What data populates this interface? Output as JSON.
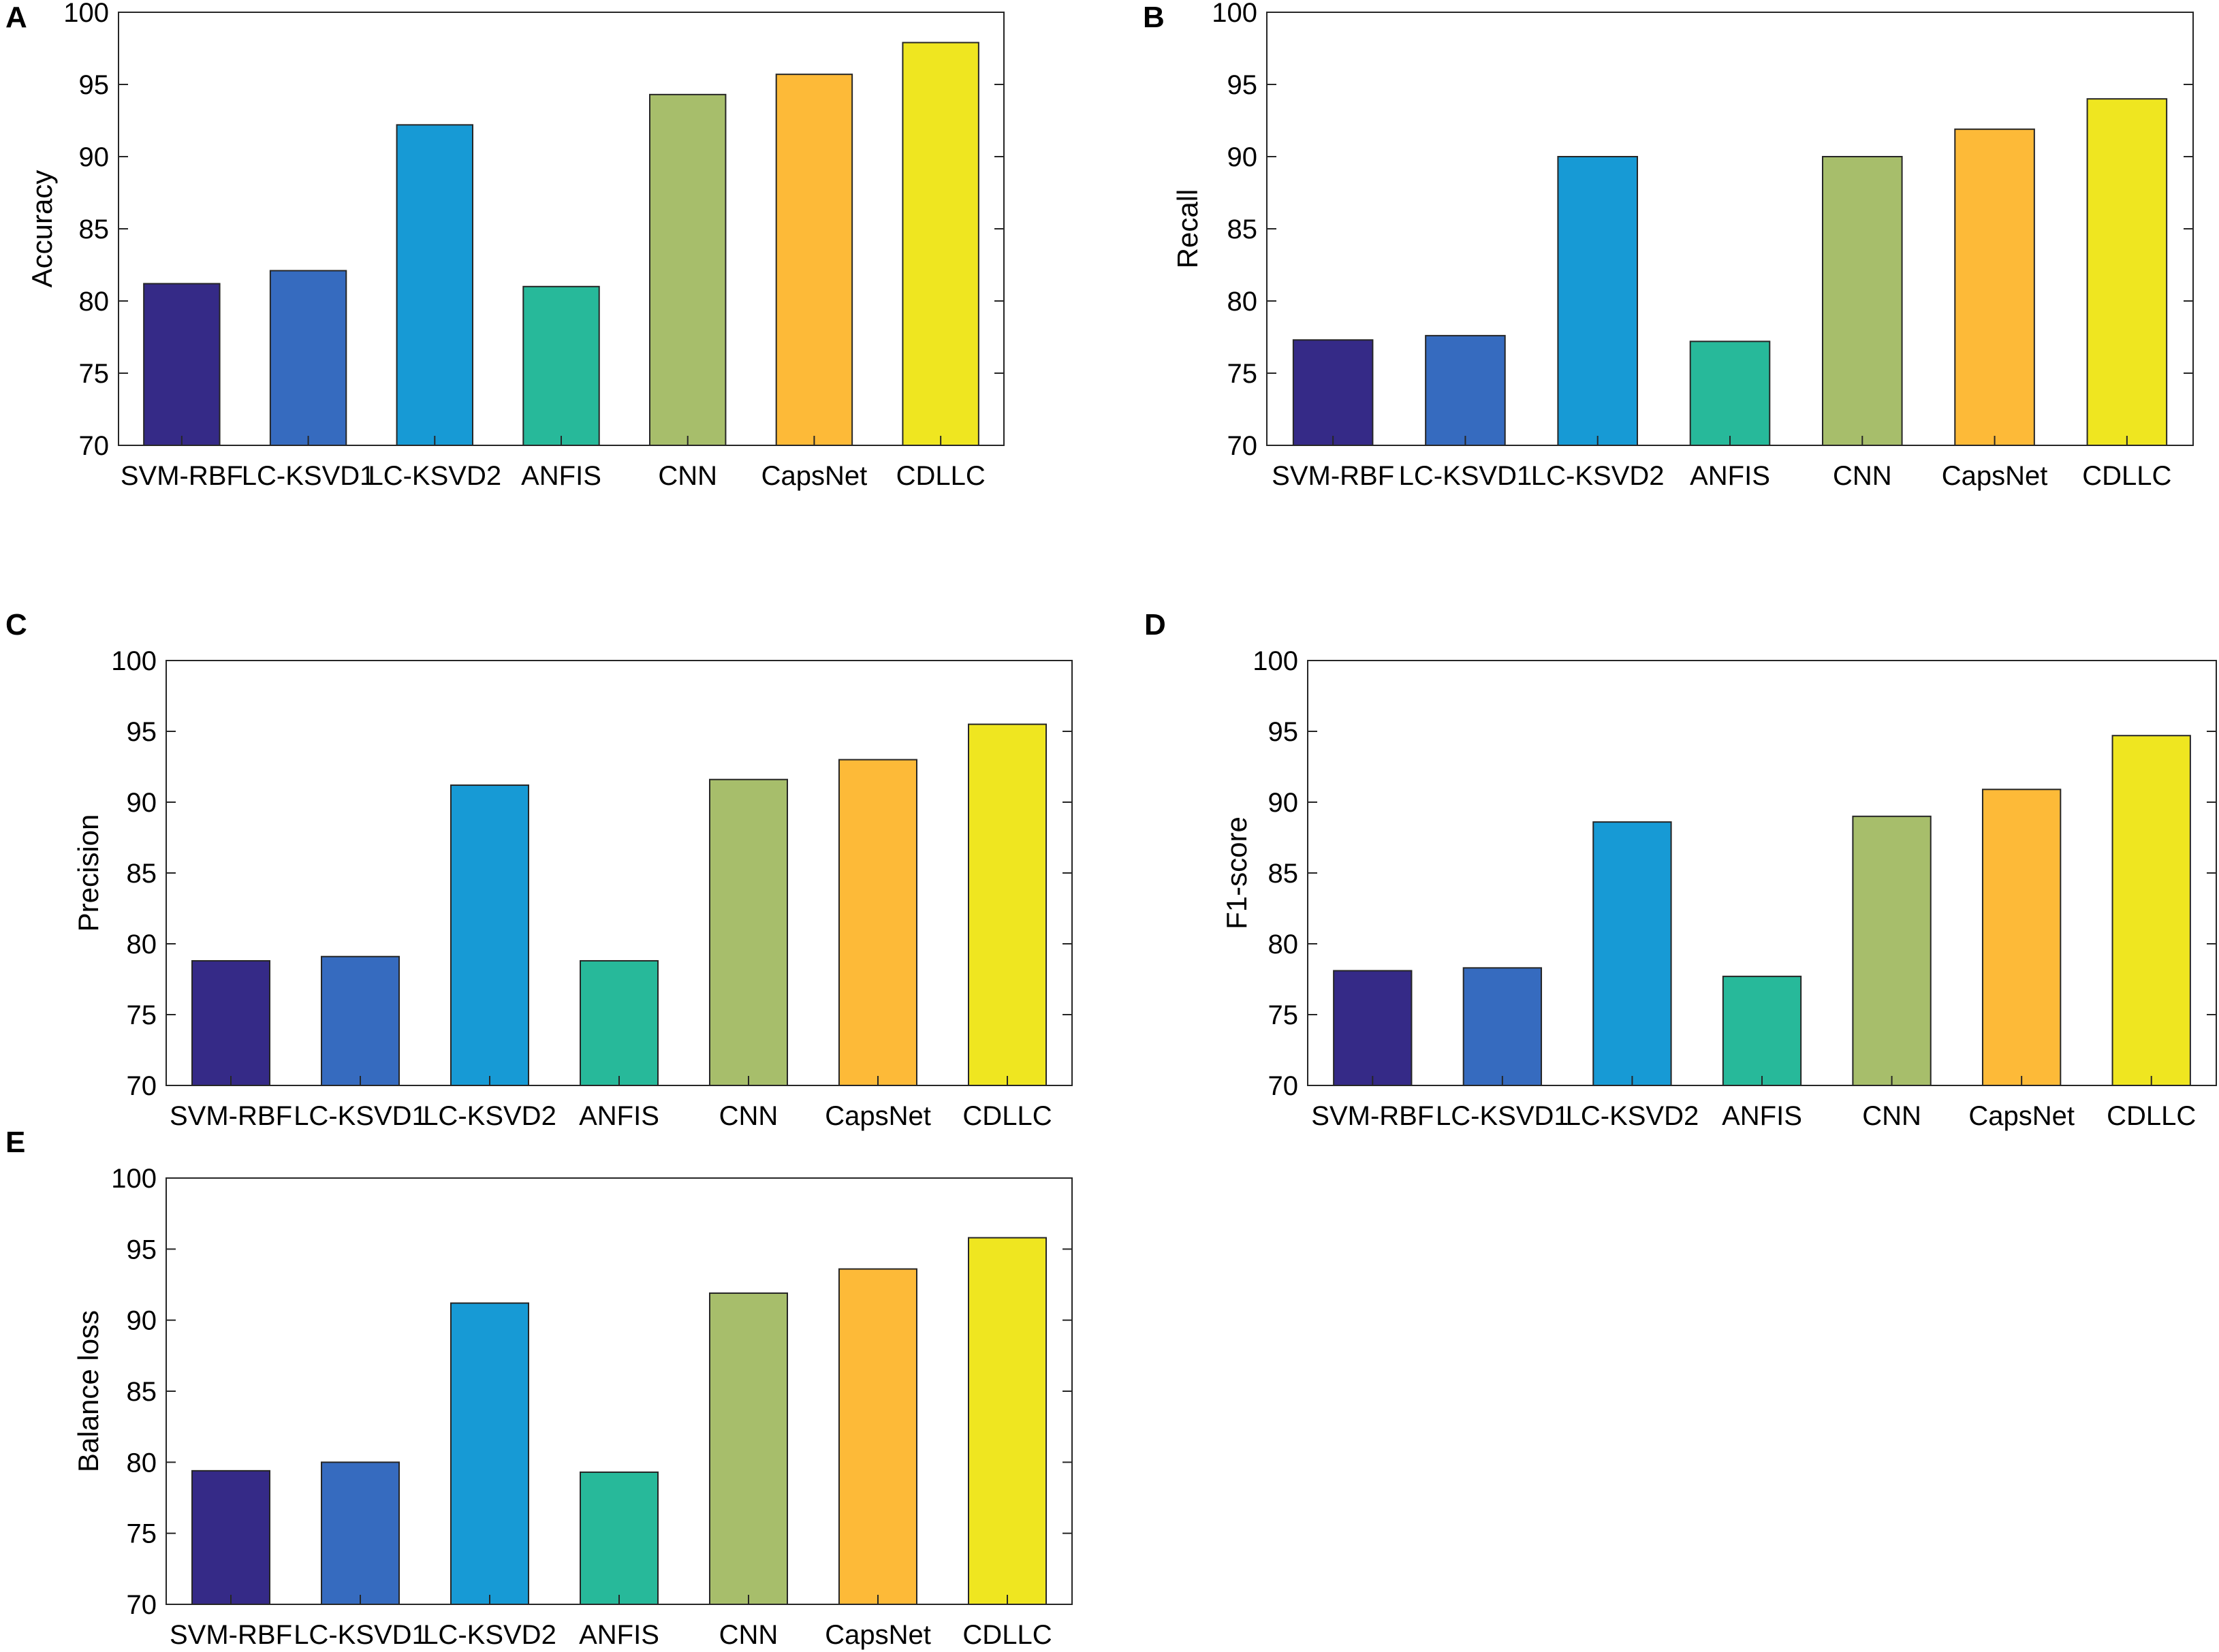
{
  "colors": [
    "#352a87",
    "#366bbf",
    "#179ad5",
    "#27b99a",
    "#a7be6b",
    "#fdba38",
    "#efe620"
  ],
  "chart_data": [
    {
      "panel": "A",
      "type": "bar",
      "categories": [
        "SVM-RBF",
        "LC-KSVD1",
        "LC-KSVD2",
        "ANFIS",
        "CNN",
        "CapsNet",
        "CDLLC"
      ],
      "values": [
        81.2,
        82.1,
        92.2,
        81.0,
        94.3,
        95.7,
        97.9
      ],
      "ylabel": "Accuracy",
      "xlabel": "",
      "ylim": [
        70,
        100
      ],
      "yticks": [
        70,
        75,
        80,
        85,
        90,
        95,
        100
      ]
    },
    {
      "panel": "B",
      "type": "bar",
      "categories": [
        "SVM-RBF",
        "LC-KSVD1",
        "LC-KSVD2",
        "ANFIS",
        "CNN",
        "CapsNet",
        "CDLLC"
      ],
      "values": [
        77.3,
        77.6,
        90.0,
        77.2,
        90.0,
        91.9,
        94.0
      ],
      "ylabel": "Recall",
      "xlabel": "",
      "ylim": [
        70,
        100
      ],
      "yticks": [
        70,
        75,
        80,
        85,
        90,
        95,
        100
      ]
    },
    {
      "panel": "C",
      "type": "bar",
      "categories": [
        "SVM-RBF",
        "LC-KSVD1",
        "LC-KSVD2",
        "ANFIS",
        "CNN",
        "CapsNet",
        "CDLLC"
      ],
      "values": [
        78.8,
        79.1,
        91.2,
        78.8,
        91.6,
        93.0,
        95.5
      ],
      "ylabel": "Precision",
      "xlabel": "",
      "ylim": [
        70,
        100
      ],
      "yticks": [
        70,
        75,
        80,
        85,
        90,
        95,
        100
      ]
    },
    {
      "panel": "D",
      "type": "bar",
      "categories": [
        "SVM-RBF",
        "LC-KSVD1",
        "LC-KSVD2",
        "ANFIS",
        "CNN",
        "CapsNet",
        "CDLLC"
      ],
      "values": [
        78.1,
        78.3,
        88.6,
        77.7,
        89.0,
        90.9,
        94.7
      ],
      "ylabel": "F1-score",
      "xlabel": "",
      "ylim": [
        70,
        100
      ],
      "yticks": [
        70,
        75,
        80,
        85,
        90,
        95,
        100
      ]
    },
    {
      "panel": "E",
      "type": "bar",
      "categories": [
        "SVM-RBF",
        "LC-KSVD1",
        "LC-KSVD2",
        "ANFIS",
        "CNN",
        "CapsNet",
        "CDLLC"
      ],
      "values": [
        79.4,
        80.0,
        91.2,
        79.3,
        91.9,
        93.6,
        95.8
      ],
      "ylabel": "Balance loss",
      "xlabel": "",
      "ylim": [
        70,
        100
      ],
      "yticks": [
        70,
        75,
        80,
        85,
        90,
        95,
        100
      ]
    }
  ]
}
